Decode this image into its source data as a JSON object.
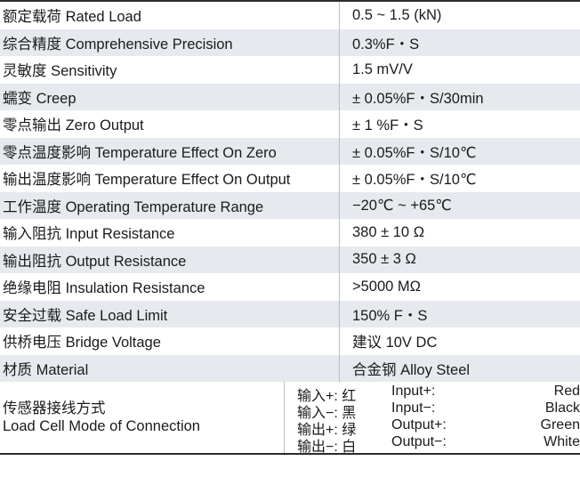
{
  "specs": [
    {
      "label": "额定载荷 Rated Load",
      "value": "0.5 ~ 1.5 (kN)"
    },
    {
      "label": "综合精度 Comprehensive Precision",
      "value": "0.3%F・S"
    },
    {
      "label": "灵敏度 Sensitivity",
      "value": "1.5 mV/V"
    },
    {
      "label": "蠕变 Creep",
      "value": "± 0.05%F・S/30min"
    },
    {
      "label": "零点输出 Zero Output",
      "value": "± 1 %F・S"
    },
    {
      "label": "零点温度影响 Temperature Effect On Zero",
      "value": "± 0.05%F・S/10℃"
    },
    {
      "label": "输出温度影响 Temperature Effect On Output",
      "value": "± 0.05%F・S/10℃"
    },
    {
      "label": "工作温度 Operating Temperature Range",
      "value": "−20℃ ~ +65℃"
    },
    {
      "label": "输入阻抗 Input Resistance",
      "value": "380 ± 10 Ω"
    },
    {
      "label": "输出阻抗 Output Resistance",
      "value": "350 ± 3 Ω"
    },
    {
      "label": "绝缘电阻 Insulation Resistance",
      "value": ">5000 MΩ"
    },
    {
      "label": "安全过载 Safe Load Limit",
      "value": "150% F・S"
    },
    {
      "label": "供桥电压 Bridge Voltage",
      "value": "建议 10V DC"
    },
    {
      "label": "材质 Material",
      "value": "合金钢 Alloy Steel"
    }
  ],
  "connection": {
    "label_cn": "传感器接线方式",
    "label_en": "Load Cell Mode of Connection",
    "wires": [
      {
        "cn": "输入+: 红",
        "en": "Input+:",
        "color": "Red"
      },
      {
        "cn": "输入−: 黑",
        "en": "Input−:",
        "color": "Black"
      },
      {
        "cn": "输出+: 绿",
        "en": "Output+:",
        "color": "Green"
      },
      {
        "cn": "输出−: 白",
        "en": "Output−:",
        "color": "White"
      }
    ]
  }
}
